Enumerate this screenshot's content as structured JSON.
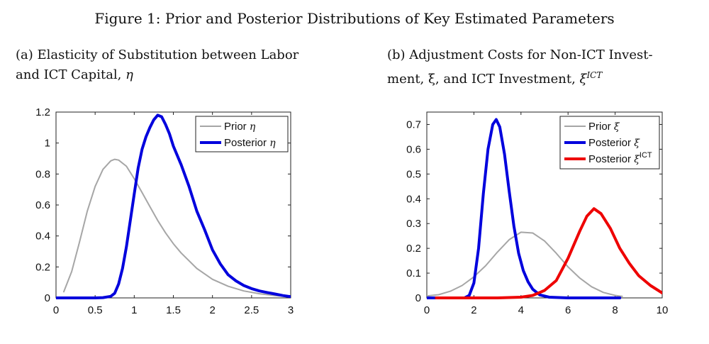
{
  "figure_title": "Figure 1: Prior and Posterior Distributions of Key Estimated Parameters",
  "panels": {
    "a": {
      "title_line1": "(a) Elasticity of Substitution between Labor",
      "title_line2": "and ICT Capital, ",
      "title_symbol": "η"
    },
    "b": {
      "title_line1": "(b) Adjustment Costs for Non-ICT Invest-",
      "title_line2": "ment, ξ, and ICT Investment, ",
      "title_symbol": "ξ",
      "title_sup": "ICT"
    }
  },
  "colors": {
    "prior": "#a6a6a6",
    "posterior": "#0000dd",
    "posterior_ict": "#ee0000"
  },
  "chart_data": [
    {
      "type": "line",
      "title": "(a) Elasticity of Substitution between Labor and ICT Capital, η",
      "xlabel": "",
      "ylabel": "",
      "xlim": [
        0,
        3
      ],
      "ylim": [
        0,
        1.2
      ],
      "xticks": [
        0,
        0.5,
        1,
        1.5,
        2,
        2.5,
        3
      ],
      "yticks": [
        0,
        0.2,
        0.4,
        0.6,
        0.8,
        1,
        1.2
      ],
      "xtick_labels": [
        "0",
        "0.5",
        "1",
        "1.5",
        "2",
        "2.5",
        "3"
      ],
      "ytick_labels": [
        "0",
        "0.2",
        "0.4",
        "0.6",
        "0.8",
        "1",
        "1.2"
      ],
      "legend_position": "top-right",
      "series": [
        {
          "name": "Prior",
          "symbol": "η",
          "color_key": "prior",
          "x": [
            0.1,
            0.2,
            0.3,
            0.4,
            0.5,
            0.6,
            0.7,
            0.75,
            0.8,
            0.9,
            1.0,
            1.1,
            1.2,
            1.3,
            1.4,
            1.5,
            1.6,
            1.8,
            2.0,
            2.2,
            2.4,
            2.6,
            2.8,
            3.0
          ],
          "y": [
            0.04,
            0.17,
            0.36,
            0.56,
            0.72,
            0.83,
            0.885,
            0.895,
            0.89,
            0.85,
            0.77,
            0.68,
            0.59,
            0.5,
            0.42,
            0.35,
            0.29,
            0.19,
            0.12,
            0.075,
            0.045,
            0.027,
            0.015,
            0.008
          ]
        },
        {
          "name": "Posterior",
          "symbol": "η",
          "color_key": "posterior",
          "x": [
            0,
            0.5,
            0.6,
            0.7,
            0.75,
            0.8,
            0.85,
            0.9,
            0.95,
            1.0,
            1.05,
            1.1,
            1.15,
            1.2,
            1.25,
            1.3,
            1.35,
            1.4,
            1.45,
            1.5,
            1.6,
            1.7,
            1.8,
            1.9,
            2.0,
            2.1,
            2.2,
            2.3,
            2.4,
            2.5,
            2.6,
            2.7,
            2.8,
            2.9,
            3.0
          ],
          "y": [
            0,
            0,
            0.002,
            0.01,
            0.03,
            0.09,
            0.19,
            0.33,
            0.5,
            0.67,
            0.84,
            0.96,
            1.04,
            1.1,
            1.15,
            1.18,
            1.17,
            1.12,
            1.06,
            0.98,
            0.86,
            0.72,
            0.56,
            0.44,
            0.31,
            0.22,
            0.15,
            0.11,
            0.08,
            0.06,
            0.045,
            0.035,
            0.025,
            0.015,
            0.008
          ]
        }
      ]
    },
    {
      "type": "line",
      "title": "(b) Adjustment Costs for Non-ICT Investment, ξ, and ICT Investment, ξ^ICT",
      "xlabel": "",
      "ylabel": "",
      "xlim": [
        0,
        10
      ],
      "ylim": [
        0,
        0.75
      ],
      "xticks": [
        0,
        2,
        4,
        6,
        8,
        10
      ],
      "yticks": [
        0,
        0.1,
        0.2,
        0.3,
        0.4,
        0.5,
        0.6,
        0.7
      ],
      "xtick_labels": [
        "0",
        "2",
        "4",
        "6",
        "8",
        "10"
      ],
      "ytick_labels": [
        "0",
        "0.1",
        "0.2",
        "0.3",
        "0.4",
        "0.5",
        "0.6",
        "0.7"
      ],
      "legend_position": "top-right",
      "series": [
        {
          "name": "Prior",
          "symbol": "ξ",
          "color_key": "prior",
          "x": [
            0,
            0.5,
            1,
            1.5,
            2,
            2.5,
            3,
            3.5,
            4,
            4.5,
            5,
            5.5,
            6,
            6.5,
            7,
            7.5,
            8,
            8.3
          ],
          "y": [
            0.008,
            0.013,
            0.027,
            0.05,
            0.085,
            0.13,
            0.185,
            0.235,
            0.265,
            0.262,
            0.23,
            0.18,
            0.125,
            0.08,
            0.045,
            0.022,
            0.01,
            0.006
          ]
        },
        {
          "name": "Posterior",
          "symbol": "ξ",
          "color_key": "posterior",
          "x": [
            0,
            1.6,
            1.8,
            2.0,
            2.2,
            2.4,
            2.6,
            2.8,
            2.95,
            3.1,
            3.3,
            3.5,
            3.7,
            3.9,
            4.1,
            4.3,
            4.5,
            4.8,
            5.2,
            6,
            7,
            8.2
          ],
          "y": [
            0,
            0,
            0.01,
            0.06,
            0.2,
            0.42,
            0.6,
            0.7,
            0.72,
            0.69,
            0.58,
            0.43,
            0.29,
            0.18,
            0.11,
            0.065,
            0.035,
            0.012,
            0.003,
            0,
            0,
            0
          ]
        },
        {
          "name": "Posterior",
          "symbol": "ξ",
          "superscript": "ICT",
          "color_key": "posterior_ict",
          "x": [
            0.4,
            3.0,
            4.0,
            4.5,
            5.0,
            5.5,
            6.0,
            6.5,
            6.8,
            7.1,
            7.4,
            7.8,
            8.2,
            8.6,
            9.0,
            9.5,
            10.0
          ],
          "y": [
            0,
            0,
            0.003,
            0.01,
            0.03,
            0.07,
            0.16,
            0.27,
            0.33,
            0.36,
            0.34,
            0.28,
            0.2,
            0.14,
            0.09,
            0.05,
            0.02
          ]
        }
      ]
    }
  ]
}
